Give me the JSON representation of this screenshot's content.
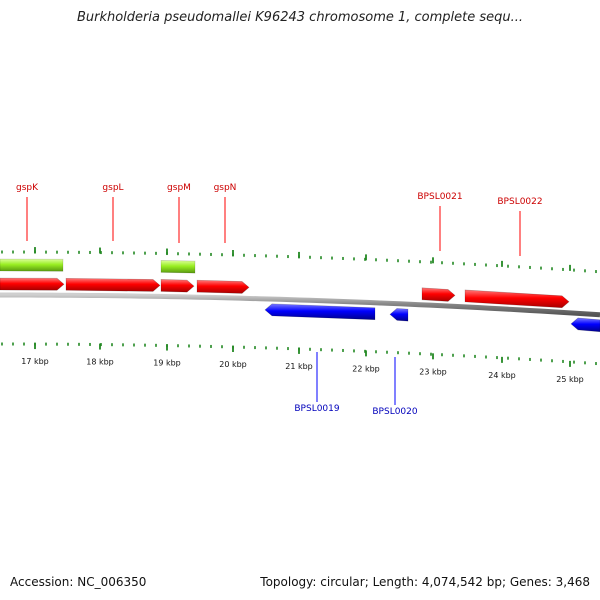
{
  "title": "Burkholderia pseudomallei K96243 chromosome 1, complete sequ...",
  "footer": {
    "accession_label": "Accession:",
    "accession": "NC_006350",
    "topology_label": "Topology:",
    "topology": "circular",
    "length_label": "Length:",
    "length": "4,074,542 bp",
    "genes_label": "Genes:",
    "genes": "3,468"
  },
  "colors": {
    "forward": "#ff0000",
    "reverse": "#0000ff",
    "feature": "#99ee22",
    "backbone": "#888888",
    "ticks": "#228822",
    "forward_label": "#cc0000",
    "reverse_label": "#0000bb"
  },
  "scale": {
    "unit": "kbp",
    "labels": [
      "17 kbp",
      "18 kbp",
      "19 kbp",
      "20 kbp",
      "21 kbp",
      "22 kbp",
      "23 kbp",
      "24 kbp",
      "25 kbp"
    ]
  },
  "genes_forward": [
    {
      "label": "gspK"
    },
    {
      "label": "gspL"
    },
    {
      "label": "gspM"
    },
    {
      "label": "gspN"
    },
    {
      "label": "BPSL0021"
    },
    {
      "label": "BPSL0022"
    }
  ],
  "genes_reverse": [
    {
      "label": "BPSL0019"
    },
    {
      "label": "BPSL0020"
    }
  ]
}
